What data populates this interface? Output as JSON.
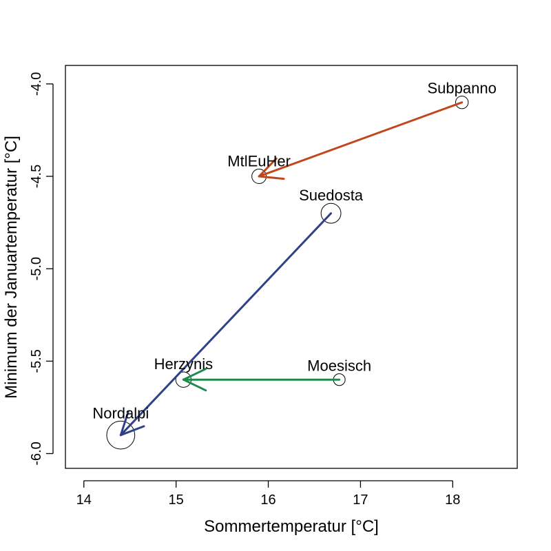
{
  "chart_data": {
    "type": "scatter",
    "title": "",
    "xlabel": "Sommertemperatur [°C]",
    "ylabel": "Minimum der Januartemperatur [°C]",
    "xlim": [
      13.8,
      18.7
    ],
    "ylim": [
      -6.08,
      -3.9
    ],
    "x_ticks": [
      14,
      15,
      16,
      17,
      18
    ],
    "y_ticks": [
      -4.0,
      -4.5,
      -5.0,
      -5.5,
      -6.0
    ],
    "x_tick_labels": [
      "14",
      "15",
      "16",
      "17",
      "18"
    ],
    "y_tick_labels": [
      "-4.0",
      "-4.5",
      "-5.0",
      "-5.5",
      "-6.0"
    ],
    "grid": false,
    "points": [
      {
        "label": "Subpanno",
        "x": 18.1,
        "y": -4.1,
        "size": 0.14
      },
      {
        "label": "MtlEuHer",
        "x": 15.9,
        "y": -4.5,
        "size": 0.16
      },
      {
        "label": "Suedosta",
        "x": 16.68,
        "y": -4.7,
        "size": 0.22
      },
      {
        "label": "Herzynis",
        "x": 15.08,
        "y": -5.6,
        "size": 0.17
      },
      {
        "label": "Moesisch",
        "x": 16.77,
        "y": -5.6,
        "size": 0.13
      },
      {
        "label": "Nordalpi",
        "x": 14.4,
        "y": -5.9,
        "size": 0.31
      }
    ],
    "arrows": [
      {
        "from": "Subpanno",
        "to": "MtlEuHer",
        "color": "#c0461b"
      },
      {
        "from": "Suedosta",
        "to": "Nordalpi",
        "color": "#2f4187"
      },
      {
        "from": "Moesisch",
        "to": "Herzynis",
        "color": "#1f8a4c"
      }
    ]
  }
}
